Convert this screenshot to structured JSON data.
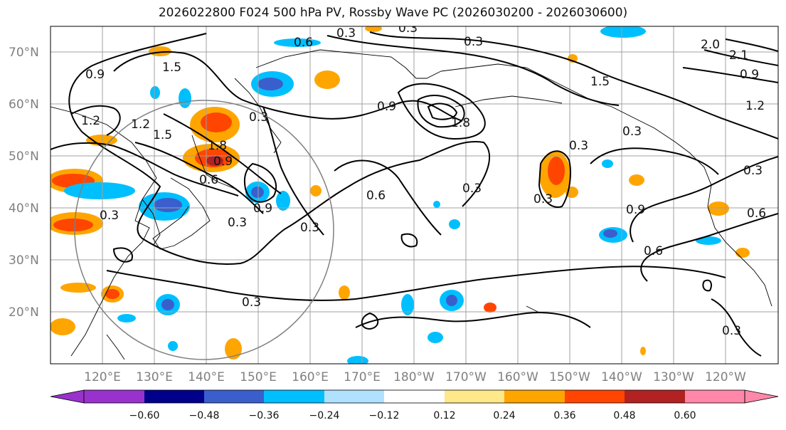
{
  "title": "2026022800 F024 500 hPa PV, Rossby Wave PC (2026030200 - 2026030600)",
  "lat_labels": [
    "70°N",
    "60°N",
    "50°N",
    "40°N",
    "30°N",
    "20°N"
  ],
  "lon_labels": [
    "120°E",
    "130°E",
    "140°E",
    "150°E",
    "160°E",
    "170°E",
    "180°W",
    "170°W",
    "160°W",
    "150°W",
    "140°W",
    "130°W",
    "120°W"
  ],
  "colorbar": {
    "ticks": [
      "−0.60",
      "−0.48",
      "−0.36",
      "−0.24",
      "−0.12",
      "0.12",
      "0.24",
      "0.36",
      "0.48",
      "0.60"
    ],
    "colors": [
      "#9932cc",
      "#00008b",
      "#3a5fcd",
      "#00bfff",
      "#b0e2ff",
      "#ffffff",
      "#ffe88a",
      "#ffa500",
      "#ff4500",
      "#b22222",
      "#ff88aa"
    ]
  },
  "contour_labels": [
    "0.3",
    "0.3",
    "0.6",
    "0.3",
    "2.0",
    "2.1",
    "1.5",
    "0.9",
    "0.9",
    "1.2",
    "1.2",
    "1.5",
    "0.9",
    "1.2",
    "1.5",
    "1.8",
    "0.3",
    "0.3",
    "1.8",
    "0.3",
    "0.9",
    "0.6",
    "0.3",
    "0.6",
    "0.3",
    "0.3",
    "0.3",
    "0.9",
    "0.3",
    "0.9",
    "0.6",
    "0.3",
    "0.3",
    "0.6",
    "0.3"
  ],
  "colors": {
    "positive": "#ffa500",
    "negative": "#00bfff",
    "contour": "#000000",
    "grid": "#a0a0a0"
  }
}
